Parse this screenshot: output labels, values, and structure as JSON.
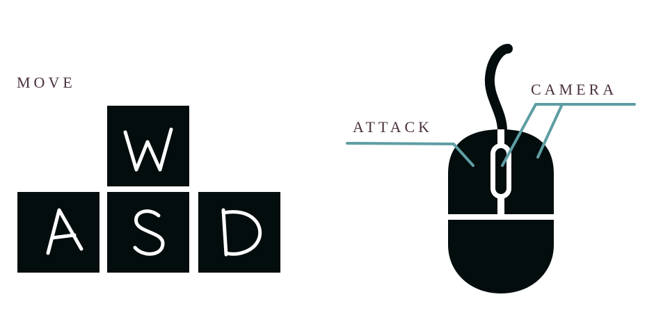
{
  "controls": {
    "move": {
      "label": "MOVE",
      "keys": [
        "W",
        "A",
        "S",
        "D"
      ]
    },
    "mouse": {
      "attack_label": "ATTACK",
      "camera_label": "CAMERA"
    }
  },
  "colors": {
    "key_background": "#040d0d",
    "key_letter": "#ffffff",
    "label_text": "#4a3140",
    "pointer_line": "#5e9ea3",
    "mouse_body": "#040d0d"
  }
}
